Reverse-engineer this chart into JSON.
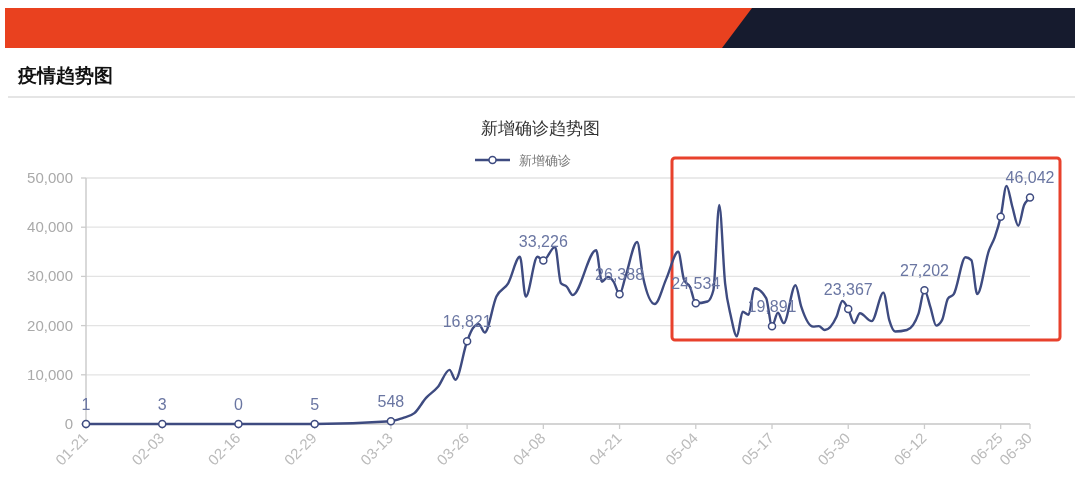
{
  "chart_data": {
    "type": "line",
    "title": "疫情趋势图",
    "subtitle": "新增确诊趋势图",
    "x": [
      "--01-21",
      "--02-03",
      "--02-16",
      "--02-29",
      "--03-13",
      "--03-15",
      "--03-17",
      "--03-19",
      "--03-21",
      "--03-23",
      "--03-24",
      "--03-26",
      "--03-27",
      "--03-28",
      "--03-29",
      "--03-31",
      "--04-02",
      "--04-04",
      "--04-05",
      "--04-07",
      "--04-08",
      "--04-10",
      "--04-11",
      "--04-12",
      "--04-13",
      "--04-17",
      "--04-18",
      "--04-19",
      "--04-20",
      "--04-21",
      "--04-22",
      "--04-24",
      "--04-25",
      "--04-27",
      "--04-29",
      "--05-01",
      "--05-02",
      "--05-03",
      "--05-04",
      "--05-06",
      "--05-07",
      "--05-08",
      "--05-09",
      "--05-10",
      "--05-11",
      "--05-12",
      "--05-13",
      "--05-14",
      "--05-16",
      "--05-17",
      "--05-18",
      "--05-19",
      "--05-21",
      "--05-22",
      "--05-24",
      "--05-25",
      "--05-26",
      "--05-28",
      "--05-29",
      "--05-30",
      "--05-31",
      "--06-01",
      "--06-03",
      "--06-05",
      "--06-06",
      "--06-07",
      "--06-09",
      "--06-11",
      "--06-12",
      "--06-13",
      "--06-14",
      "--06-15",
      "--06-16",
      "--06-17",
      "--06-19",
      "--06-20",
      "--06-21",
      "--06-23",
      "--06-24",
      "--06-25",
      "--06-26",
      "--06-27",
      "--06-28",
      "--06-29",
      "--06-30"
    ],
    "series": [
      {
        "name": "新增确诊",
        "color": "#3e4b80",
        "marker": "none",
        "values": [
          1,
          3,
          0,
          5,
          548,
          1200,
          2200,
          5300,
          7500,
          11000,
          9000,
          16821,
          19500,
          20300,
          18600,
          25900,
          28600,
          34000,
          25900,
          34000,
          33226,
          36000,
          28600,
          27900,
          26200,
          35300,
          28900,
          29900,
          28900,
          26388,
          29900,
          37000,
          29900,
          24400,
          29600,
          35000,
          29300,
          27900,
          24534,
          24900,
          27200,
          44500,
          28600,
          21800,
          17800,
          22800,
          22200,
          27600,
          25600,
          19891,
          22600,
          20500,
          28200,
          23800,
          19800,
          19900,
          19100,
          21800,
          25000,
          23367,
          20500,
          22500,
          20900,
          26700,
          21100,
          18800,
          19100,
          22500,
          27202,
          23800,
          20000,
          21100,
          25500,
          26400,
          33900,
          33300,
          26400,
          35300,
          38000,
          42100,
          48400,
          44100,
          40300,
          44500,
          46042
        ]
      },
      {
        "type": "scatter",
        "color": "#3e4b80",
        "x": [
          "--01-21",
          "--02-03",
          "--02-16",
          "--02-29",
          "--03-13",
          "--03-26",
          "--04-08",
          "--04-21",
          "--05-04",
          "--05-17",
          "--05-30",
          "--06-12",
          "--06-25",
          "--06-30"
        ],
        "values": [
          1,
          3,
          0,
          5,
          548,
          16821,
          33226,
          26388,
          24534,
          19891,
          23367,
          27202,
          42100,
          46042
        ],
        "value_labels": [
          "1",
          "3",
          "0",
          "5",
          "548",
          "16,821",
          "33,226",
          "26,388",
          "24,534",
          "19,891",
          "23,367",
          "27,202",
          null,
          "46,042"
        ]
      }
    ],
    "xlim": [
      "--01-21",
      "--06-30"
    ],
    "xticks": [
      {
        "value": "--01-21",
        "label": "01-21"
      },
      {
        "value": "--02-03",
        "label": "02-03"
      },
      {
        "value": "--02-16",
        "label": "02-16"
      },
      {
        "value": "--02-29",
        "label": "02-29"
      },
      {
        "value": "--03-13",
        "label": "03-13"
      },
      {
        "value": "--03-26",
        "label": "03-26"
      },
      {
        "value": "--04-08",
        "label": "04-08"
      },
      {
        "value": "--04-21",
        "label": "04-21"
      },
      {
        "value": "--05-04",
        "label": "05-04"
      },
      {
        "value": "--05-17",
        "label": "05-17"
      },
      {
        "value": "--05-30",
        "label": "05-30"
      },
      {
        "value": "--06-12",
        "label": "06-12"
      },
      {
        "value": "--06-25",
        "label": "06-25"
      },
      {
        "value": "--06-30",
        "label": "06-30"
      }
    ],
    "ylim": [
      0,
      50000
    ],
    "yticks": [
      0,
      {
        "value": 10000,
        "label": "10,000"
      },
      {
        "value": 20000,
        "label": "20,000"
      },
      {
        "value": 30000,
        "label": "30,000"
      },
      {
        "value": 40000,
        "label": "40,000"
      },
      {
        "value": 50000,
        "label": "50,000"
      }
    ],
    "grid": "y",
    "legend": "top",
    "marker": "circle"
  }
}
